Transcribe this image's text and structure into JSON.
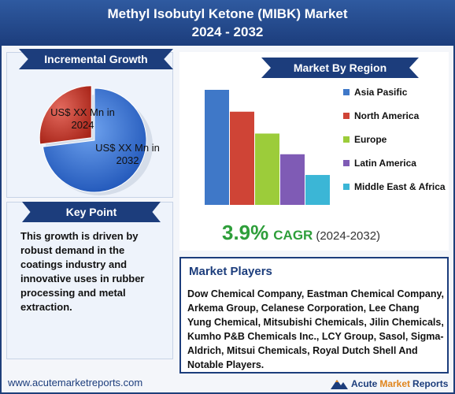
{
  "header": {
    "title_line1": "Methyl Isobutyl Ketone (MIBK) Market",
    "title_line2": "2024 - 2032"
  },
  "incremental": {
    "ribbon": "Incremental Growth",
    "label_2024": "US$ XX Mn in 2024",
    "label_2032": "US$ XX Mn in 2032"
  },
  "key_point": {
    "ribbon": "Key Point",
    "text": "This growth is driven by robust demand in the coatings industry and innovative uses in rubber processing and metal extraction."
  },
  "region": {
    "ribbon": "Market By Region"
  },
  "cagr": {
    "value": "3.9%",
    "word": "CAGR",
    "years": "(2024-2032)"
  },
  "players": {
    "title": "Market Players",
    "text": "Dow Chemical Company, Eastman Chemical Company, Arkema Group, Celanese Corporation, Lee Chang Yung Chemical, Mitsubishi Chemicals, Jilin Chemicals, Kumho P&B Chemicals Inc., LCY Group, Sasol, Sigma-Aldrich, Mitsui Chemicals, Royal Dutch Shell And Notable Players."
  },
  "footer": {
    "url": "www.acutemarketreports.com",
    "brand_a": "Acute",
    "brand_b": "Market",
    "brand_c": "Reports"
  },
  "chart_data": [
    {
      "type": "pie",
      "labels": [
        "US$ XX Mn in 2024",
        "US$ XX Mn in 2032"
      ],
      "values": [
        27,
        73
      ],
      "colors": [
        "#c0392b",
        "#2f6fd6"
      ]
    },
    {
      "type": "bar",
      "categories": [
        "Asia Pasific",
        "North America",
        "Europe",
        "Latin America",
        "Middle East & Africa"
      ],
      "values": [
        100,
        81,
        62,
        44,
        26
      ],
      "colors": [
        "#3f78c8",
        "#cf4436",
        "#9ccc3a",
        "#7f5bb5",
        "#3bb6d6"
      ]
    }
  ]
}
